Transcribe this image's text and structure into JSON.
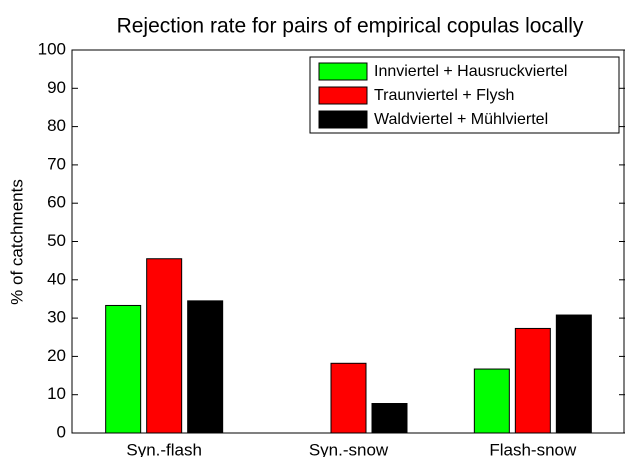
{
  "chart_data": {
    "type": "bar",
    "title": "Rejection rate for pairs of empirical copulas locally",
    "y_label": "% of catchments",
    "categories": [
      "Syn.-flash",
      "Syn.-snow",
      "Flash-snow"
    ],
    "series": [
      {
        "name": "Innviertel + Hausruckviertel",
        "color": "#00ff00",
        "values": [
          33.3,
          0,
          16.7
        ]
      },
      {
        "name": "Traunviertel + Flysh",
        "color": "#ff0000",
        "values": [
          45.5,
          18.2,
          27.3
        ]
      },
      {
        "name": "Waldviertel + Mühlviertel",
        "color": "#000000",
        "values": [
          34.5,
          7.7,
          30.8
        ]
      }
    ],
    "ylim": [
      0,
      100
    ],
    "yticks": [
      0,
      10,
      20,
      30,
      40,
      50,
      60,
      70,
      80,
      90,
      100
    ],
    "legend": "upper right"
  }
}
